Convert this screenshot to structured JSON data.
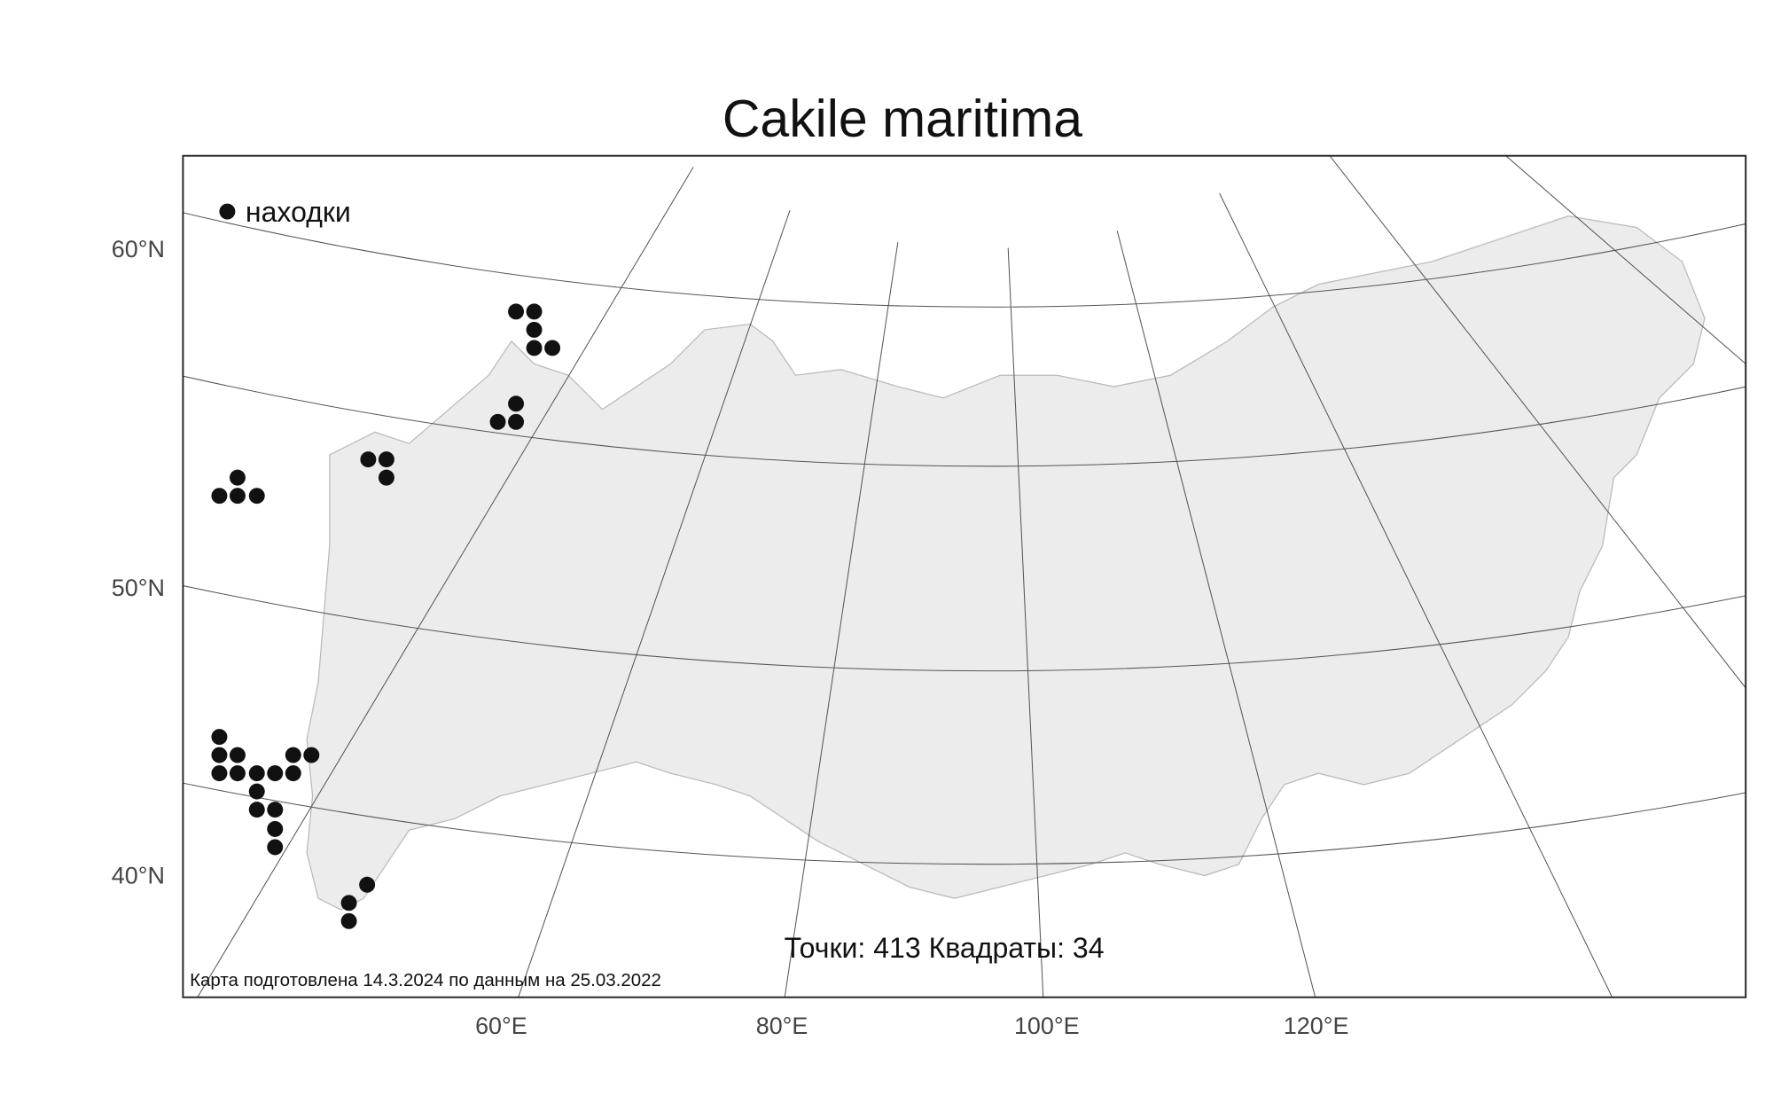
{
  "title": "Cakile maritima",
  "legend": "находки",
  "lat_labels": [
    "60°N",
    "50°N",
    "40°N"
  ],
  "lon_labels": [
    "60°E",
    "80°E",
    "100°E",
    "120°E"
  ],
  "stats": {
    "points_label": "Точки:",
    "points": 413,
    "squares_label": "Квадраты:",
    "squares": 34
  },
  "footer": "Карта подготовлена 14.3.2024 по данным на 25.03.2022"
}
